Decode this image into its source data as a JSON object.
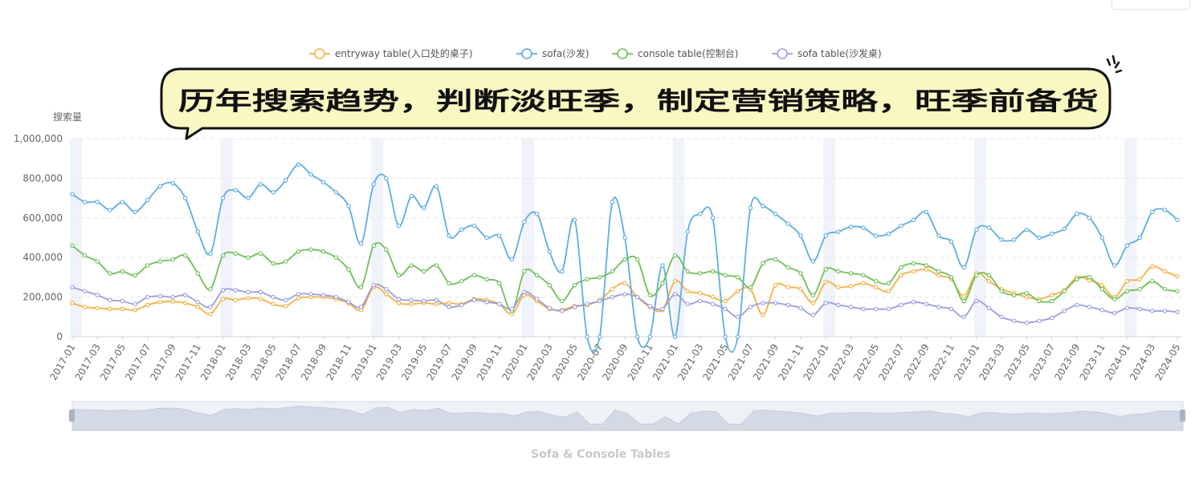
{
  "chart_data": {
    "type": "line",
    "ylabel": "搜索量",
    "ylim": [
      0,
      1000000
    ],
    "yticks": [
      "1,000,000",
      "800,000",
      "600,000",
      "400,000",
      "200,000",
      "0"
    ],
    "subtitle": "Sofa & Console Tables",
    "annotation": "历年搜索趋势，判断淡旺季，制定营销策略，旺季前备货",
    "annotation_icon": "magnifier-icon",
    "legend_position": "top-center",
    "grid": "horizontal-dashed",
    "x": [
      "2017-01",
      "2017-02",
      "2017-03",
      "2017-04",
      "2017-05",
      "2017-06",
      "2017-07",
      "2017-08",
      "2017-09",
      "2017-10",
      "2017-11",
      "2017-12",
      "2018-01",
      "2018-02",
      "2018-03",
      "2018-04",
      "2018-05",
      "2018-06",
      "2018-07",
      "2018-08",
      "2018-09",
      "2018-10",
      "2018-11",
      "2018-12",
      "2019-01",
      "2019-02",
      "2019-03",
      "2019-04",
      "2019-05",
      "2019-06",
      "2019-07",
      "2019-08",
      "2019-09",
      "2019-10",
      "2019-11",
      "2019-12",
      "2020-01",
      "2020-02",
      "2020-03",
      "2020-04",
      "2020-05",
      "2020-06",
      "2020-07",
      "2020-08",
      "2020-09",
      "2020-10",
      "2020-11",
      "2020-12",
      "2021-01",
      "2021-02",
      "2021-03",
      "2021-04",
      "2021-05",
      "2021-06",
      "2021-07",
      "2021-08",
      "2021-09",
      "2021-10",
      "2021-11",
      "2021-12",
      "2022-01",
      "2022-02",
      "2022-03",
      "2022-04",
      "2022-05",
      "2022-06",
      "2022-07",
      "2022-08",
      "2022-09",
      "2022-10",
      "2022-11",
      "2022-12",
      "2023-01",
      "2023-02",
      "2023-03",
      "2023-04",
      "2023-05",
      "2023-06",
      "2023-07",
      "2023-08",
      "2023-09",
      "2023-10",
      "2023-11",
      "2023-12",
      "2024-01",
      "2024-02",
      "2024-03",
      "2024-04",
      "2024-05"
    ],
    "xtick_labels": [
      "2017-01",
      "2017-03",
      "2017-05",
      "2017-07",
      "2017-09",
      "2017-11",
      "2018-01",
      "2018-03",
      "2018-05",
      "2018-07",
      "2018-09",
      "2018-11",
      "2019-01",
      "2019-03",
      "2019-05",
      "2019-07",
      "2019-09",
      "2019-11",
      "2020-01",
      "2020-03",
      "2020-05",
      "2020-07",
      "2020-09",
      "2020-11",
      "2021-01",
      "2021-03",
      "2021-05",
      "2021-07",
      "2021-09",
      "2021-11",
      "2022-01",
      "2022-03",
      "2022-05",
      "2022-07",
      "2022-09",
      "2022-11",
      "2023-01",
      "2023-03",
      "2023-05",
      "2023-07",
      "2023-09",
      "2023-11",
      "2024-01",
      "2024-03",
      "2024-05"
    ],
    "highlight_months": [
      "2017-01",
      "2018-01",
      "2019-01",
      "2020-01",
      "2021-01",
      "2022-01",
      "2023-01",
      "2024-01"
    ],
    "series": [
      {
        "name": "entryway table(入口处的桌子)",
        "color": "#f5b041",
        "values": [
          170000,
          150000,
          145000,
          140000,
          140000,
          135000,
          160000,
          175000,
          178000,
          170000,
          150000,
          115000,
          190000,
          185000,
          195000,
          190000,
          165000,
          155000,
          195000,
          200000,
          200000,
          190000,
          170000,
          135000,
          250000,
          215000,
          170000,
          165000,
          170000,
          165000,
          170000,
          165000,
          190000,
          185000,
          165000,
          115000,
          210000,
          180000,
          140000,
          135000,
          155000,
          160000,
          185000,
          240000,
          270000,
          200000,
          150000,
          135000,
          280000,
          230000,
          220000,
          200000,
          180000,
          230000,
          240000,
          110000,
          260000,
          250000,
          240000,
          170000,
          275000,
          250000,
          255000,
          270000,
          250000,
          230000,
          310000,
          330000,
          340000,
          310000,
          290000,
          205000,
          320000,
          280000,
          240000,
          220000,
          200000,
          190000,
          210000,
          235000,
          300000,
          285000,
          260000,
          200000,
          280000,
          290000,
          355000,
          330000,
          305000
        ]
      },
      {
        "name": "sofa(沙发)",
        "color": "#5dade2",
        "values": [
          720000,
          680000,
          680000,
          640000,
          680000,
          630000,
          690000,
          760000,
          775000,
          700000,
          530000,
          420000,
          700000,
          740000,
          700000,
          770000,
          730000,
          790000,
          870000,
          820000,
          780000,
          730000,
          660000,
          470000,
          770000,
          800000,
          560000,
          710000,
          650000,
          760000,
          510000,
          540000,
          560000,
          500000,
          510000,
          390000,
          580000,
          620000,
          430000,
          330000,
          590000,
          0,
          0,
          680000,
          500000,
          0,
          0,
          360000,
          0,
          530000,
          620000,
          600000,
          0,
          0,
          650000,
          660000,
          620000,
          570000,
          510000,
          380000,
          510000,
          530000,
          555000,
          550000,
          510000,
          520000,
          560000,
          590000,
          630000,
          510000,
          480000,
          350000,
          540000,
          550000,
          490000,
          490000,
          540000,
          500000,
          520000,
          545000,
          620000,
          600000,
          500000,
          360000,
          460000,
          500000,
          630000,
          640000,
          590000
        ]
      },
      {
        "name": "console table(控制台)",
        "color": "#6fbf57",
        "values": [
          460000,
          410000,
          380000,
          320000,
          330000,
          310000,
          360000,
          380000,
          390000,
          410000,
          320000,
          240000,
          410000,
          420000,
          400000,
          420000,
          370000,
          380000,
          430000,
          440000,
          430000,
          400000,
          340000,
          250000,
          460000,
          440000,
          310000,
          360000,
          330000,
          360000,
          270000,
          280000,
          310000,
          290000,
          270000,
          130000,
          330000,
          310000,
          260000,
          180000,
          260000,
          290000,
          300000,
          330000,
          390000,
          390000,
          210000,
          270000,
          410000,
          330000,
          320000,
          330000,
          310000,
          300000,
          250000,
          370000,
          390000,
          350000,
          320000,
          210000,
          340000,
          330000,
          320000,
          310000,
          280000,
          270000,
          350000,
          370000,
          360000,
          330000,
          300000,
          180000,
          310000,
          310000,
          230000,
          210000,
          220000,
          180000,
          180000,
          230000,
          290000,
          300000,
          240000,
          190000,
          230000,
          240000,
          280000,
          240000,
          230000
        ]
      },
      {
        "name": "sofa table(沙发桌)",
        "color": "#9b9ee0",
        "values": [
          250000,
          230000,
          210000,
          185000,
          180000,
          165000,
          200000,
          205000,
          200000,
          210000,
          175000,
          150000,
          235000,
          235000,
          225000,
          225000,
          200000,
          185000,
          215000,
          215000,
          210000,
          200000,
          175000,
          150000,
          260000,
          240000,
          190000,
          185000,
          180000,
          185000,
          150000,
          160000,
          185000,
          175000,
          165000,
          140000,
          225000,
          190000,
          145000,
          130000,
          150000,
          165000,
          180000,
          200000,
          215000,
          200000,
          155000,
          140000,
          215000,
          165000,
          180000,
          165000,
          140000,
          100000,
          150000,
          170000,
          170000,
          160000,
          145000,
          110000,
          170000,
          160000,
          150000,
          140000,
          140000,
          140000,
          160000,
          175000,
          165000,
          150000,
          140000,
          100000,
          180000,
          145000,
          100000,
          80000,
          70000,
          80000,
          95000,
          130000,
          160000,
          150000,
          135000,
          120000,
          145000,
          140000,
          130000,
          130000,
          125000
        ]
      }
    ]
  }
}
